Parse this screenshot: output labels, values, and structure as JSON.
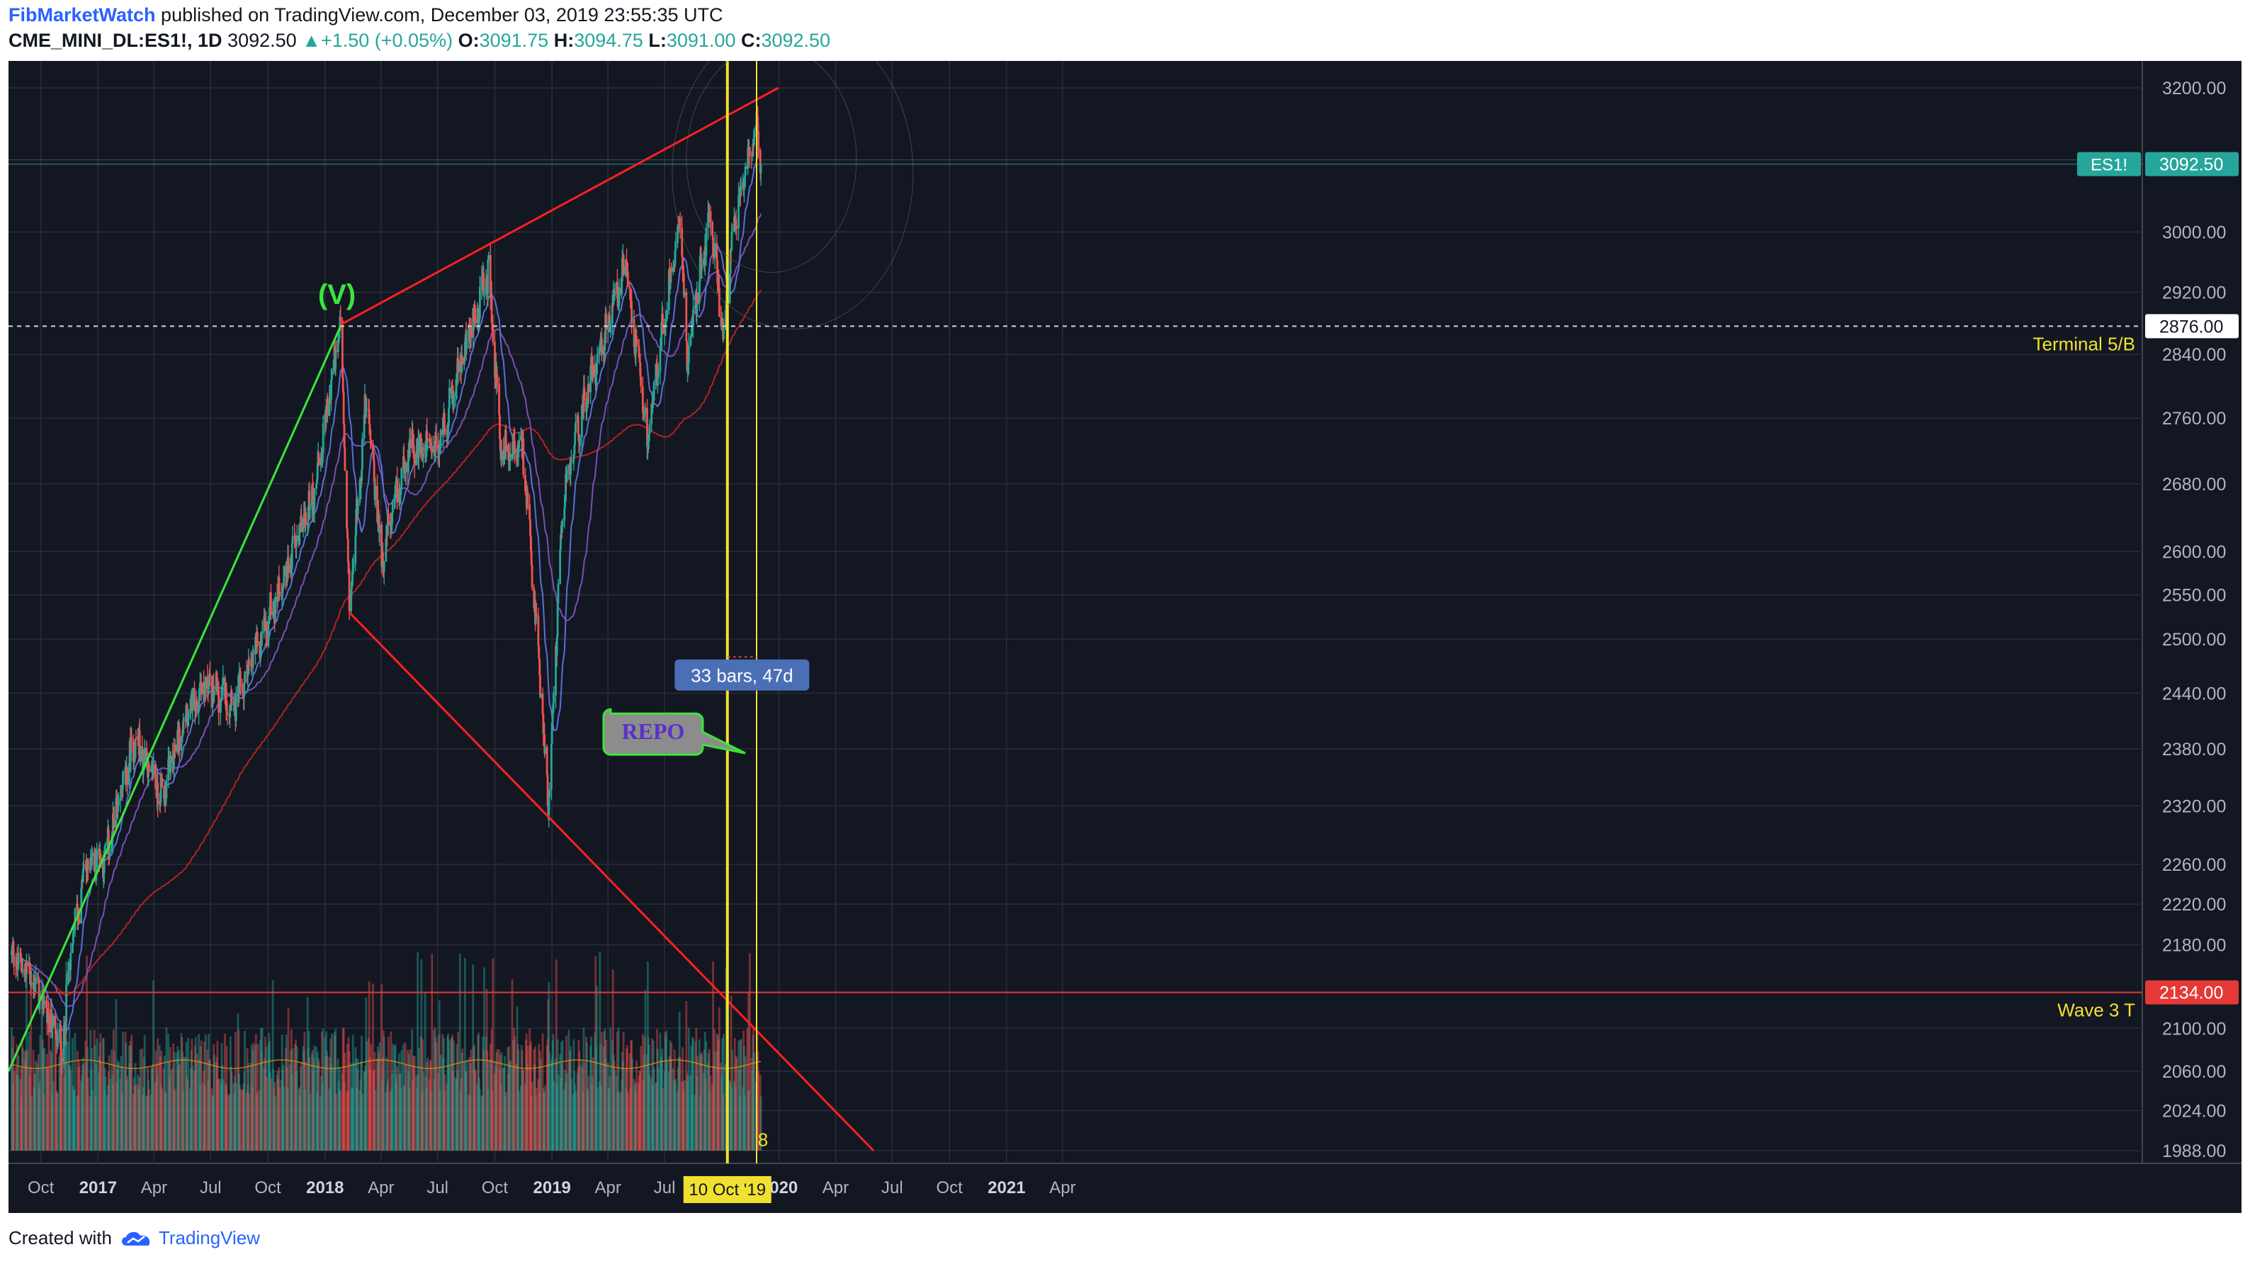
{
  "header": {
    "author": "FibMarketWatch",
    "published_text": "published on TradingView.com, December 03, 2019 23:55:35 UTC",
    "symbol": "CME_MINI_DL:ES1!, 1D",
    "last_price": "3092.50",
    "change": "+1.50 (+0.05%)",
    "open_label": "O:",
    "open": "3091.75",
    "high_label": "H:",
    "high": "3094.75",
    "low_label": "L:",
    "low": "3091.00",
    "close_label": "C:",
    "close": "3092.50"
  },
  "footer": {
    "created_with": "Created with",
    "brand": "TradingView"
  },
  "colors": {
    "background": "#131722",
    "grid": "#2a2e39",
    "text": "#b2b5be",
    "up": "#26a69a",
    "down": "#ef5350",
    "yellow": "#f0e130",
    "red_line": "#ff2020",
    "green_line": "#39e639",
    "price_tag": "#26a69a"
  },
  "chart_data": {
    "type": "candlestick",
    "symbol": "CME_MINI_DL:ES1!",
    "timeframe": "1D",
    "price_axis": {
      "ticks": [
        3200,
        3000,
        2920,
        2840,
        2760,
        2680,
        2600,
        2550,
        2500,
        2440,
        2380,
        2320,
        2260,
        2220,
        2180,
        2100,
        2060,
        2024,
        1988
      ],
      "tick_labels": [
        "3200.00",
        "3000.00",
        "2920.00",
        "2840.00",
        "2760.00",
        "2680.00",
        "2600.00",
        "2550.00",
        "2500.00",
        "2440.00",
        "2380.00",
        "2320.00",
        "2260.00",
        "2220.00",
        "2180.00",
        "2100.00",
        "2060.00",
        "2024.00",
        "1988.00"
      ],
      "scale": "log"
    },
    "time_axis": {
      "ticks": [
        "2016-10-01",
        "2017-01-01",
        "2017-04-01",
        "2017-07-01",
        "2017-10-01",
        "2018-01-01",
        "2018-04-01",
        "2018-07-01",
        "2018-10-01",
        "2019-01-01",
        "2019-04-01",
        "2019-07-01",
        "2020-01-01",
        "2020-04-01",
        "2020-07-01",
        "2020-10-01",
        "2021-01-01",
        "2021-04-01"
      ],
      "tick_labels": [
        "Oct",
        "2017",
        "Apr",
        "Jul",
        "Oct",
        "2018",
        "Apr",
        "Jul",
        "Oct",
        "2019",
        "Apr",
        "Jul",
        "2020",
        "Apr",
        "Jul",
        "Oct",
        "2021",
        "Apr"
      ],
      "bold": [
        "2017",
        "2018",
        "2019",
        "2020",
        "2021"
      ]
    },
    "price_path_approx": [
      [
        "2016-08-15",
        2170
      ],
      [
        "2016-09-15",
        2150
      ],
      [
        "2016-11-04",
        2080
      ],
      [
        "2016-11-20",
        2180
      ],
      [
        "2016-12-13",
        2260
      ],
      [
        "2017-01-15",
        2270
      ],
      [
        "2017-03-01",
        2390
      ],
      [
        "2017-04-14",
        2330
      ],
      [
        "2017-05-15",
        2400
      ],
      [
        "2017-06-19",
        2450
      ],
      [
        "2017-08-10",
        2430
      ],
      [
        "2017-09-20",
        2500
      ],
      [
        "2017-11-01",
        2580
      ],
      [
        "2017-12-15",
        2670
      ],
      [
        "2018-01-26",
        2878
      ],
      [
        "2018-02-09",
        2530
      ],
      [
        "2018-03-09",
        2790
      ],
      [
        "2018-04-02",
        2590
      ],
      [
        "2018-05-15",
        2720
      ],
      [
        "2018-07-01",
        2720
      ],
      [
        "2018-08-15",
        2850
      ],
      [
        "2018-09-21",
        2945
      ],
      [
        "2018-10-11",
        2720
      ],
      [
        "2018-11-15",
        2720
      ],
      [
        "2018-12-26",
        2320
      ],
      [
        "2019-01-20",
        2670
      ],
      [
        "2019-03-01",
        2800
      ],
      [
        "2019-04-30",
        2955
      ],
      [
        "2019-06-03",
        2730
      ],
      [
        "2019-07-26",
        3030
      ],
      [
        "2019-08-06",
        2830
      ],
      [
        "2019-09-12",
        3030
      ],
      [
        "2019-10-03",
        2860
      ],
      [
        "2019-10-20",
        3000
      ],
      [
        "2019-11-27",
        3160
      ],
      [
        "2019-12-03",
        3092.5
      ]
    ],
    "volume": {
      "panel_top_price": 2180,
      "panel_bottom_price": 1988,
      "max_bar_label": ""
    },
    "moving_averages": [
      "20",
      "50",
      "200"
    ],
    "last_price_tag": {
      "label": "ES1!",
      "value": "3092.50",
      "price": 3092.5
    },
    "horizontal_levels": [
      {
        "price": 2876,
        "label": "Terminal 5/B",
        "tag": "2876.00",
        "style": "dashed"
      },
      {
        "price": 2134,
        "label": "Wave 3 T",
        "tag": "2134.00",
        "style": "solid-red"
      }
    ],
    "trendlines": [
      {
        "name": "upper-red",
        "from": [
          "2018-01-26",
          2878
        ],
        "to": [
          "2019-12-31",
          3200
        ]
      },
      {
        "name": "lower-red",
        "from": [
          "2018-02-09",
          2530
        ],
        "to": [
          "2020-06-01",
          1988
        ]
      },
      {
        "name": "green",
        "from": [
          "2016-08-10",
          2060
        ],
        "to": [
          "2018-01-26",
          2876
        ]
      }
    ],
    "annotations": [
      {
        "text": "(V)",
        "date": "2018-01-20",
        "price": 2905
      },
      {
        "text": "REPO",
        "type": "callout",
        "date": "2019-08-20",
        "price": 2395
      },
      {
        "text": "33 bars, 47d",
        "type": "measure",
        "from": "2019-10-10",
        "to": "2019-11-26",
        "price": 2460
      },
      {
        "text": "8",
        "date": "2019-11-28",
        "price": 1992
      }
    ],
    "vertical_lines": [
      {
        "date": "2019-10-10",
        "label": "10 Oct '19"
      },
      {
        "date": "2019-11-26",
        "label": ""
      }
    ],
    "legend": "none",
    "grid": true
  }
}
